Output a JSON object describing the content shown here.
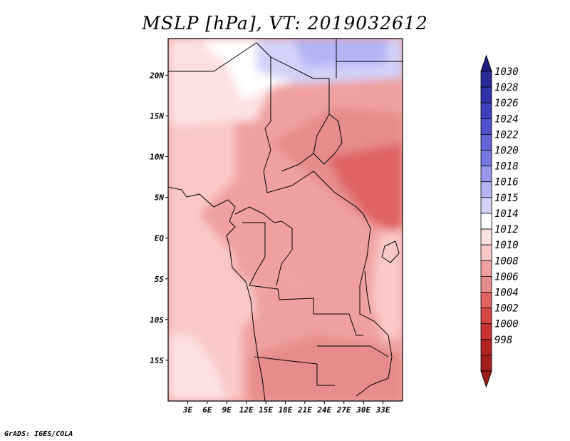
{
  "title": "MSLP [hPa], VT: 2019032612",
  "footer": "GrADS: IGES/COLA",
  "map": {
    "lon_range": [
      0,
      36
    ],
    "lat_range": [
      -20,
      24.5
    ],
    "lon_ticks": [
      {
        "value": 3,
        "label": "3E"
      },
      {
        "value": 6,
        "label": "6E"
      },
      {
        "value": 9,
        "label": "9E"
      },
      {
        "value": 12,
        "label": "12E"
      },
      {
        "value": 15,
        "label": "15E"
      },
      {
        "value": 18,
        "label": "18E"
      },
      {
        "value": 21,
        "label": "21E"
      },
      {
        "value": 24,
        "label": "24E"
      },
      {
        "value": 27,
        "label": "27E"
      },
      {
        "value": 30,
        "label": "30E"
      },
      {
        "value": 33,
        "label": "33E"
      }
    ],
    "lat_ticks": [
      {
        "value": 20,
        "label": "20N"
      },
      {
        "value": 15,
        "label": "15N"
      },
      {
        "value": 10,
        "label": "10N"
      },
      {
        "value": 5,
        "label": "5N"
      },
      {
        "value": 0,
        "label": "EQ"
      },
      {
        "value": -5,
        "label": "5S"
      },
      {
        "value": -10,
        "label": "10S"
      },
      {
        "value": -15,
        "label": "15S"
      }
    ]
  },
  "colorbar": {
    "levels": [
      {
        "label": "1030",
        "color": "#2a2a96"
      },
      {
        "label": "1028",
        "color": "#3232aa"
      },
      {
        "label": "1026",
        "color": "#4040bf"
      },
      {
        "label": "1024",
        "color": "#5050cc"
      },
      {
        "label": "1022",
        "color": "#6464d7"
      },
      {
        "label": "1020",
        "color": "#7878e1"
      },
      {
        "label": "1018",
        "color": "#9696eb"
      },
      {
        "label": "1016",
        "color": "#b4b4f5"
      },
      {
        "label": "1015",
        "color": "#d2d2fa"
      },
      {
        "label": "1014",
        "color": "#ffffff"
      },
      {
        "label": "1012",
        "color": "#fde1e1"
      },
      {
        "label": "1010",
        "color": "#fac8c8"
      },
      {
        "label": "1008",
        "color": "#f0a0a0"
      },
      {
        "label": "1006",
        "color": "#e68c8c"
      },
      {
        "label": "1004",
        "color": "#e06464"
      },
      {
        "label": "1002",
        "color": "#d74646"
      },
      {
        "label": "1000",
        "color": "#c83232"
      },
      {
        "label": "998",
        "color": "#b42323"
      }
    ],
    "top_color": "#1e1e82",
    "bottom_color": "#a01e1e"
  },
  "colors": {
    "low_core": "#e05a5a",
    "blue_high": "#b4b4f5",
    "pale_blue": "#d2d2fa"
  }
}
